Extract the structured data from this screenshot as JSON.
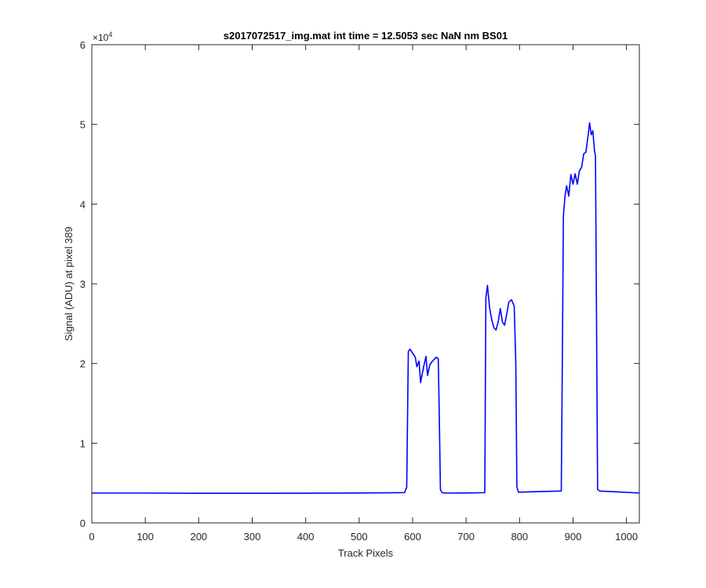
{
  "chart_data": {
    "type": "line",
    "title": "s2017072517_img.mat int time = 12.5053 sec  NaN nm BS01",
    "xlabel": "Track Pixels",
    "ylabel": "Signal (ADU) at pixel 389",
    "xlim": [
      0,
      1024
    ],
    "ylim": [
      0,
      60000
    ],
    "x_ticks": [
      0,
      100,
      200,
      300,
      400,
      500,
      600,
      700,
      800,
      900,
      1000
    ],
    "y_ticks": [
      0,
      10000,
      20000,
      30000,
      40000,
      50000,
      60000
    ],
    "y_tick_labels": [
      "0",
      "1",
      "2",
      "3",
      "4",
      "5",
      "6"
    ],
    "y_exponent_base": "×10",
    "y_exponent_power": "4",
    "grid": false,
    "series": [
      {
        "color": "#0000ff",
        "x": [
          0,
          100,
          200,
          300,
          400,
          500,
          585,
          589,
          592,
          595,
          600,
          605,
          608,
          612,
          615,
          618,
          621,
          625,
          628,
          632,
          636,
          640,
          644,
          648,
          650,
          652,
          655,
          660,
          700,
          735,
          737,
          740,
          744,
          748,
          752,
          756,
          760,
          764,
          768,
          772,
          776,
          780,
          785,
          790,
          793,
          795,
          798,
          820,
          878,
          880,
          882,
          885,
          888,
          892,
          896,
          900,
          904,
          908,
          912,
          916,
          920,
          924,
          928,
          931,
          934,
          937,
          940,
          942,
          944,
          946,
          950,
          980,
          1024
        ],
        "y": [
          3750,
          3750,
          3720,
          3720,
          3730,
          3760,
          3800,
          4500,
          21500,
          21800,
          21300,
          20800,
          19600,
          20300,
          17600,
          18700,
          19700,
          20900,
          18500,
          19800,
          20200,
          20500,
          20800,
          20600,
          13000,
          4200,
          3800,
          3750,
          3760,
          3800,
          28200,
          29800,
          27000,
          25500,
          24500,
          24200,
          25200,
          26900,
          25200,
          24800,
          26200,
          27700,
          28000,
          27200,
          20000,
          4500,
          3850,
          3900,
          4000,
          20000,
          38500,
          41000,
          42300,
          41000,
          43700,
          42500,
          43800,
          42500,
          44200,
          44600,
          46300,
          46500,
          48500,
          50200,
          48700,
          49200,
          46800,
          46000,
          25000,
          4200,
          4000,
          3900,
          3750
        ]
      }
    ]
  }
}
